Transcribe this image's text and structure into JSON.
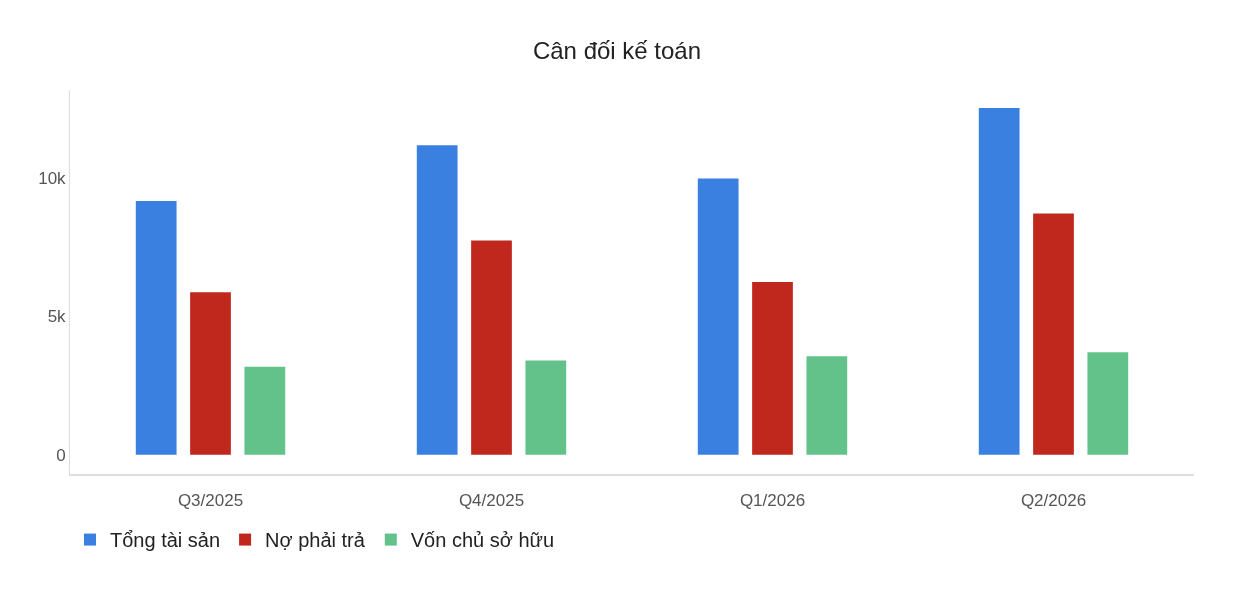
{
  "chart_data": {
    "type": "bar",
    "title": "Cân đối kế toán",
    "categories": [
      "Q3/2025",
      "Q4/2025",
      "Q1/2026",
      "Q2/2026"
    ],
    "series": [
      {
        "name": "Tổng tài sản",
        "color": "#3a80e0",
        "values": [
          9180,
          11200,
          10000,
          12550
        ]
      },
      {
        "name": "Nợ phải trả",
        "color": "#c0281e",
        "values": [
          5880,
          7750,
          6250,
          8730
        ]
      },
      {
        "name": "Vốn chủ sở hữu",
        "color": "#62c28a",
        "values": [
          3180,
          3410,
          3560,
          3710
        ]
      }
    ],
    "ylim": [
      -700,
      13200
    ],
    "yticks": [
      0,
      {
        "value": 5000,
        "label": "5k"
      },
      {
        "value": 10000,
        "label": "10k"
      }
    ],
    "grid": false,
    "legend": "bottom left"
  }
}
